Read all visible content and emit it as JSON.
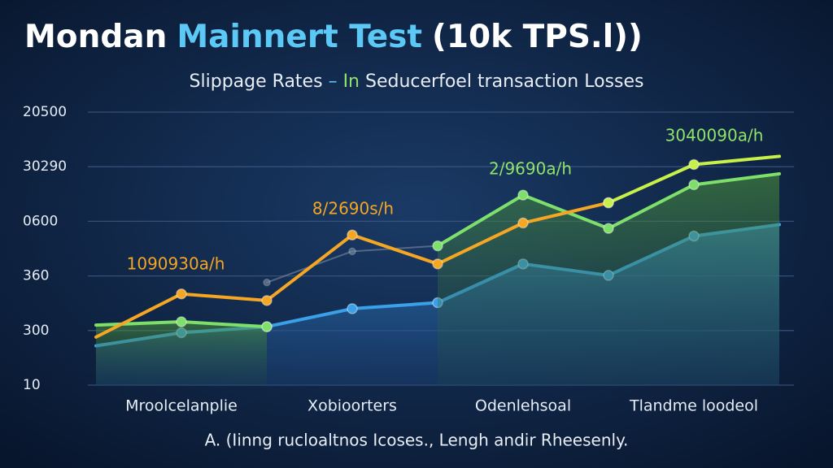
{
  "chart_data": {
    "type": "line",
    "title_parts": [
      {
        "text": "Mondan",
        "color": "#ffffff"
      },
      {
        "text": "Mainnert Test",
        "color": "#5cc8f5"
      },
      {
        "text": "(10k TPS.l))",
        "color": "#ffffff"
      }
    ],
    "subtitle_parts": [
      {
        "text": "Slippage Rates",
        "color": "#e8edf5"
      },
      {
        "text": "–",
        "color": "#5cc8f5"
      },
      {
        "text": "In",
        "color": "#8fe36a"
      },
      {
        "text": "Seducerfoel transaction Losses",
        "color": "#e8edf5"
      }
    ],
    "caption": "A. (Iinng rucloaltnos Icoses., Lengh andir Rheesenly.",
    "x": [
      0,
      1,
      2,
      3,
      4,
      5,
      6,
      7,
      8
    ],
    "xlim": [
      0,
      8
    ],
    "xticks": [
      {
        "value": 1,
        "label": "Mroolcelanplie"
      },
      {
        "value": 3,
        "label": "Xobioorters"
      },
      {
        "value": 5,
        "label": "Odenlehsoal"
      },
      {
        "value": 7,
        "label": "Tlandme loodeol"
      }
    ],
    "ylim": [
      0,
      5
    ],
    "yticks": [
      {
        "value": 0,
        "label": "10"
      },
      {
        "value": 1,
        "label": "300"
      },
      {
        "value": 2,
        "label": "360"
      },
      {
        "value": 3,
        "label": "0600"
      },
      {
        "value": 4,
        "label": "30290"
      },
      {
        "value": 5,
        "label": "20500"
      }
    ],
    "grid": true,
    "series": [
      {
        "color": "#3aa0e8",
        "fill": true,
        "values": [
          0.72,
          0.96,
          1.07,
          1.4,
          1.51,
          2.22,
          2.01,
          2.73,
          2.94
        ]
      },
      {
        "color": "#7a8aa0",
        "values": [
          1.18,
          null,
          1.88,
          2.45,
          2.55,
          null,
          null,
          null,
          null
        ]
      },
      {
        "color": "#7ee06a",
        "fill": true,
        "values": [
          1.1,
          1.16,
          1.07,
          null,
          2.55,
          3.48,
          2.87,
          3.67,
          3.87
        ]
      },
      {
        "color": "#f5a623",
        "values": [
          0.88,
          1.67,
          1.55,
          2.75,
          2.22,
          2.97,
          3.34,
          null,
          null
        ]
      },
      {
        "color": "#c8f04a",
        "values": [
          null,
          null,
          null,
          null,
          null,
          null,
          3.34,
          4.04,
          4.19
        ]
      }
    ],
    "annotations": [
      {
        "text": "1090930a/h",
        "color": "#f5a623"
      },
      {
        "text": "8/2690s/h",
        "color": "#f5a623"
      },
      {
        "text": "2/9690a/h",
        "color": "#8fe36a"
      },
      {
        "text": "3040090a/h",
        "color": "#8fe36a"
      }
    ]
  }
}
